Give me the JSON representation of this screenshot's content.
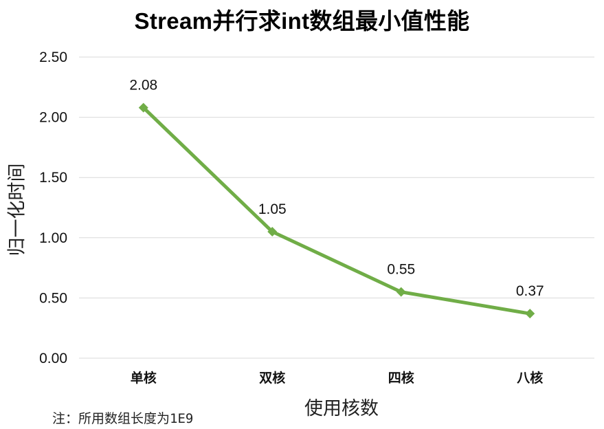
{
  "chart_data": {
    "type": "line",
    "title": "Stream并行求int数组最小值性能",
    "xlabel": "使用核数",
    "ylabel": "归一化时间",
    "categories": [
      "单核",
      "双核",
      "四核",
      "八核"
    ],
    "series": [
      {
        "values": [
          2.08,
          1.05,
          0.55,
          0.37
        ],
        "color": "#70ad47"
      }
    ],
    "data_labels": [
      "2.08",
      "1.05",
      "0.55",
      "0.37"
    ],
    "ylim": [
      0,
      2.5
    ],
    "yticks": [
      "0.00",
      "0.50",
      "1.00",
      "1.50",
      "2.00",
      "2.50"
    ],
    "grid": true,
    "legend": "none",
    "marker": "diamond"
  },
  "note": "注：所用数组长度为1E9",
  "colors": {
    "series": "#70ad47",
    "grid": "#d9d9d9",
    "text": "#111111"
  }
}
